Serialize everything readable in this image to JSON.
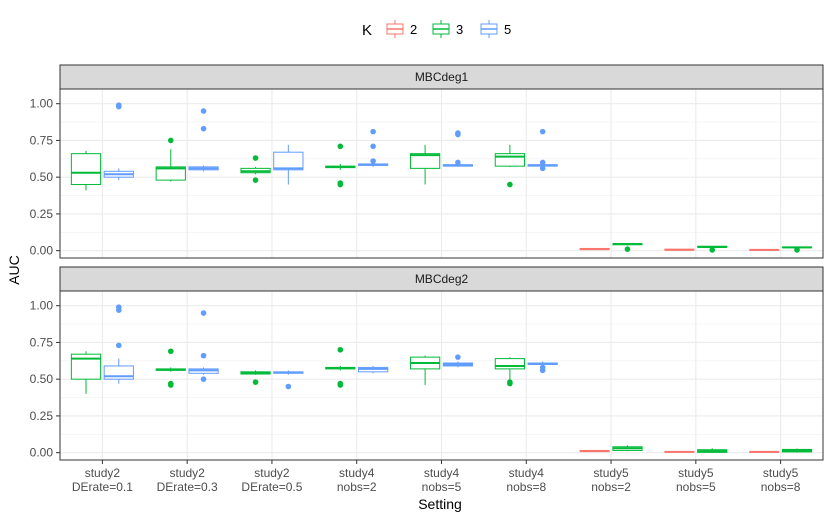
{
  "chart_data": {
    "type": "boxplot",
    "xlabel": "Setting",
    "ylabel": "AUC",
    "ylim": [
      -0.05,
      1.1
    ],
    "yticks": [
      0.0,
      0.25,
      0.5,
      0.75,
      1.0
    ],
    "ytick_labels": [
      "0.00",
      "0.25",
      "0.50",
      "0.75",
      "1.00"
    ],
    "grid": true,
    "legend": {
      "position": "top",
      "title": "K",
      "entries": [
        {
          "label": "2",
          "color": "#F8766D"
        },
        {
          "label": "3",
          "color": "#00BA38"
        },
        {
          "label": "5",
          "color": "#619CFF"
        }
      ]
    },
    "categories": [
      [
        "study2",
        "DErate=0.1"
      ],
      [
        "study2",
        "DErate=0.3"
      ],
      [
        "study2",
        "DErate=0.5"
      ],
      [
        "study4",
        "nobs=2"
      ],
      [
        "study4",
        "nobs=5"
      ],
      [
        "study4",
        "nobs=8"
      ],
      [
        "study5",
        "nobs=2"
      ],
      [
        "study5",
        "nobs=5"
      ],
      [
        "study5",
        "nobs=8"
      ]
    ],
    "panels": [
      {
        "title": "MBCdeg1",
        "boxes": [
          {
            "cat": 0,
            "k": "3",
            "min": 0.41,
            "q1": 0.45,
            "median": 0.53,
            "q3": 0.66,
            "max": 0.68,
            "outliers": []
          },
          {
            "cat": 0,
            "k": "5",
            "min": 0.48,
            "q1": 0.5,
            "median": 0.52,
            "q3": 0.54,
            "max": 0.56,
            "outliers": [
              0.98,
              0.99
            ]
          },
          {
            "cat": 1,
            "k": "3",
            "min": 0.47,
            "q1": 0.48,
            "median": 0.56,
            "q3": 0.57,
            "max": 0.69,
            "outliers": [
              0.75
            ]
          },
          {
            "cat": 1,
            "k": "5",
            "min": 0.54,
            "q1": 0.55,
            "median": 0.56,
            "q3": 0.57,
            "max": 0.58,
            "outliers": [
              0.83,
              0.95
            ]
          },
          {
            "cat": 2,
            "k": "3",
            "min": 0.52,
            "q1": 0.53,
            "median": 0.54,
            "q3": 0.56,
            "max": 0.57,
            "outliers": [
              0.48,
              0.63
            ]
          },
          {
            "cat": 2,
            "k": "5",
            "min": 0.45,
            "q1": 0.55,
            "median": 0.56,
            "q3": 0.67,
            "max": 0.72,
            "outliers": []
          },
          {
            "cat": 3,
            "k": "3",
            "min": 0.55,
            "q1": 0.565,
            "median": 0.57,
            "q3": 0.575,
            "max": 0.59,
            "outliers": [
              0.45,
              0.46,
              0.71
            ]
          },
          {
            "cat": 3,
            "k": "5",
            "min": 0.57,
            "q1": 0.58,
            "median": 0.585,
            "q3": 0.59,
            "max": 0.6,
            "outliers": [
              0.61,
              0.71,
              0.81
            ]
          },
          {
            "cat": 4,
            "k": "3",
            "min": 0.45,
            "q1": 0.56,
            "median": 0.65,
            "q3": 0.66,
            "max": 0.72,
            "outliers": []
          },
          {
            "cat": 4,
            "k": "5",
            "min": 0.57,
            "q1": 0.575,
            "median": 0.58,
            "q3": 0.585,
            "max": 0.59,
            "outliers": [
              0.6,
              0.79,
              0.8
            ]
          },
          {
            "cat": 5,
            "k": "3",
            "min": 0.57,
            "q1": 0.575,
            "median": 0.64,
            "q3": 0.66,
            "max": 0.72,
            "outliers": [
              0.45
            ]
          },
          {
            "cat": 5,
            "k": "5",
            "min": 0.57,
            "q1": 0.575,
            "median": 0.58,
            "q3": 0.585,
            "max": 0.59,
            "outliers": [
              0.56,
              0.6,
              0.81
            ]
          },
          {
            "cat": 6,
            "k": "2",
            "min": 0.01,
            "q1": 0.01,
            "median": 0.01,
            "q3": 0.015,
            "max": 0.015,
            "outliers": []
          },
          {
            "cat": 6,
            "k": "3",
            "min": 0.035,
            "q1": 0.04,
            "median": 0.045,
            "q3": 0.045,
            "max": 0.05,
            "outliers": [
              0.01
            ]
          },
          {
            "cat": 7,
            "k": "2",
            "min": 0.005,
            "q1": 0.005,
            "median": 0.005,
            "q3": 0.01,
            "max": 0.01,
            "outliers": []
          },
          {
            "cat": 7,
            "k": "3",
            "min": 0.02,
            "q1": 0.025,
            "median": 0.025,
            "q3": 0.03,
            "max": 0.03,
            "outliers": [
              0.005
            ]
          },
          {
            "cat": 8,
            "k": "2",
            "min": 0.002,
            "q1": 0.003,
            "median": 0.005,
            "q3": 0.006,
            "max": 0.008,
            "outliers": []
          },
          {
            "cat": 8,
            "k": "3",
            "min": 0.015,
            "q1": 0.02,
            "median": 0.022,
            "q3": 0.025,
            "max": 0.028,
            "outliers": [
              0.005
            ]
          }
        ]
      },
      {
        "title": "MBCdeg2",
        "boxes": [
          {
            "cat": 0,
            "k": "3",
            "min": 0.4,
            "q1": 0.5,
            "median": 0.64,
            "q3": 0.67,
            "max": 0.69,
            "outliers": []
          },
          {
            "cat": 0,
            "k": "5",
            "min": 0.47,
            "q1": 0.5,
            "median": 0.52,
            "q3": 0.59,
            "max": 0.64,
            "outliers": [
              0.73,
              0.97,
              0.99
            ]
          },
          {
            "cat": 1,
            "k": "3",
            "min": 0.55,
            "q1": 0.56,
            "median": 0.565,
            "q3": 0.57,
            "max": 0.58,
            "outliers": [
              0.46,
              0.47,
              0.69
            ]
          },
          {
            "cat": 1,
            "k": "5",
            "min": 0.53,
            "q1": 0.54,
            "median": 0.56,
            "q3": 0.57,
            "max": 0.58,
            "outliers": [
              0.5,
              0.66,
              0.95
            ]
          },
          {
            "cat": 2,
            "k": "3",
            "min": 0.53,
            "q1": 0.535,
            "median": 0.545,
            "q3": 0.55,
            "max": 0.56,
            "outliers": [
              0.48
            ]
          },
          {
            "cat": 2,
            "k": "5",
            "min": 0.53,
            "q1": 0.54,
            "median": 0.545,
            "q3": 0.55,
            "max": 0.56,
            "outliers": [
              0.45
            ]
          },
          {
            "cat": 3,
            "k": "3",
            "min": 0.56,
            "q1": 0.57,
            "median": 0.575,
            "q3": 0.58,
            "max": 0.59,
            "outliers": [
              0.46,
              0.47,
              0.7
            ]
          },
          {
            "cat": 3,
            "k": "5",
            "min": 0.54,
            "q1": 0.55,
            "median": 0.57,
            "q3": 0.58,
            "max": 0.59,
            "outliers": []
          },
          {
            "cat": 4,
            "k": "3",
            "min": 0.46,
            "q1": 0.57,
            "median": 0.61,
            "q3": 0.65,
            "max": 0.66,
            "outliers": []
          },
          {
            "cat": 4,
            "k": "5",
            "min": 0.58,
            "q1": 0.59,
            "median": 0.6,
            "q3": 0.61,
            "max": 0.62,
            "outliers": [
              0.65
            ]
          },
          {
            "cat": 5,
            "k": "3",
            "min": 0.49,
            "q1": 0.57,
            "median": 0.59,
            "q3": 0.64,
            "max": 0.65,
            "outliers": [
              0.47,
              0.48
            ]
          },
          {
            "cat": 5,
            "k": "5",
            "min": 0.59,
            "q1": 0.6,
            "median": 0.605,
            "q3": 0.61,
            "max": 0.62,
            "outliers": [
              0.56,
              0.58
            ]
          },
          {
            "cat": 6,
            "k": "2",
            "min": 0.01,
            "q1": 0.01,
            "median": 0.01,
            "q3": 0.015,
            "max": 0.015,
            "outliers": []
          },
          {
            "cat": 6,
            "k": "3",
            "min": 0.01,
            "q1": 0.015,
            "median": 0.03,
            "q3": 0.04,
            "max": 0.05,
            "outliers": []
          },
          {
            "cat": 7,
            "k": "2",
            "min": 0.003,
            "q1": 0.004,
            "median": 0.005,
            "q3": 0.007,
            "max": 0.008,
            "outliers": []
          },
          {
            "cat": 7,
            "k": "3",
            "min": 0.0,
            "q1": 0.002,
            "median": 0.01,
            "q3": 0.02,
            "max": 0.03,
            "outliers": []
          },
          {
            "cat": 8,
            "k": "2",
            "min": 0.002,
            "q1": 0.003,
            "median": 0.005,
            "q3": 0.006,
            "max": 0.008,
            "outliers": []
          },
          {
            "cat": 8,
            "k": "3",
            "min": 0.0,
            "q1": 0.005,
            "median": 0.015,
            "q3": 0.022,
            "max": 0.028,
            "outliers": []
          }
        ]
      }
    ]
  }
}
